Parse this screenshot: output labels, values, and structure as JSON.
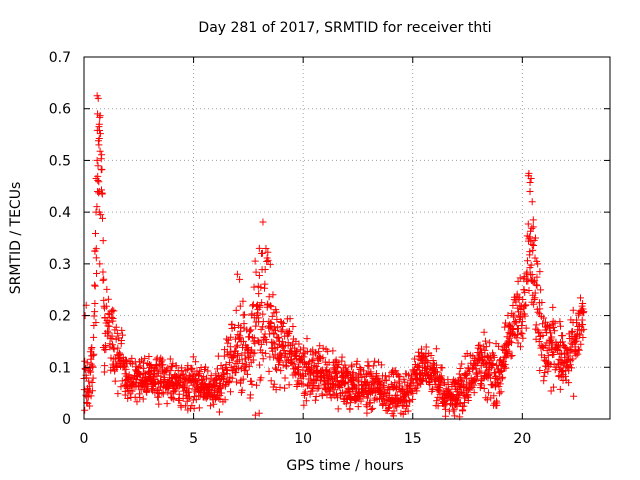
{
  "chart_data": {
    "type": "scatter",
    "title": "Day 281 of 2017, SRMTID for receiver thti",
    "xlabel": "GPS time / hours",
    "ylabel": "SRMTID / TECUs",
    "xlim": [
      0,
      24
    ],
    "ylim": [
      0,
      0.7
    ],
    "x_ticks": [
      0,
      5,
      10,
      15,
      20
    ],
    "x_tick_labels": [
      "0",
      "5",
      "10",
      "15",
      "20"
    ],
    "y_ticks": [
      0,
      0.1,
      0.2,
      0.3,
      0.4,
      0.5,
      0.6,
      0.7
    ],
    "y_tick_labels": [
      "0",
      "0.1",
      "0.2",
      "0.3",
      "0.4",
      "0.5",
      "0.6",
      "0.7"
    ],
    "grid": true,
    "marker": "+",
    "color": "#ff0000",
    "envelope": {
      "x": [
        0,
        0.2,
        0.4,
        0.6,
        0.75,
        0.9,
        1.2,
        1.6,
        2,
        3,
        4,
        5,
        6,
        6.5,
        7,
        7.5,
        8,
        8.3,
        8.8,
        9.3,
        10,
        11,
        12,
        13,
        14,
        14.7,
        15.3,
        16,
        16.5,
        17,
        17.5,
        18,
        18.5,
        19,
        19.5,
        20,
        20.3,
        20.6,
        21,
        21.5,
        22,
        22.5,
        22.8
      ],
      "y": [
        0.06,
        0.07,
        0.09,
        0.45,
        0.55,
        0.2,
        0.15,
        0.12,
        0.08,
        0.08,
        0.07,
        0.065,
        0.06,
        0.08,
        0.15,
        0.11,
        0.2,
        0.22,
        0.14,
        0.13,
        0.09,
        0.08,
        0.07,
        0.06,
        0.05,
        0.045,
        0.1,
        0.08,
        0.04,
        0.05,
        0.07,
        0.12,
        0.09,
        0.08,
        0.18,
        0.2,
        0.37,
        0.25,
        0.13,
        0.14,
        0.1,
        0.15,
        0.2
      ],
      "spread": [
        0.04,
        0.05,
        0.05,
        0.15,
        0.08,
        0.08,
        0.05,
        0.05,
        0.03,
        0.03,
        0.03,
        0.035,
        0.03,
        0.04,
        0.07,
        0.05,
        0.12,
        0.1,
        0.06,
        0.05,
        0.04,
        0.04,
        0.035,
        0.035,
        0.03,
        0.03,
        0.03,
        0.04,
        0.03,
        0.03,
        0.04,
        0.04,
        0.04,
        0.04,
        0.05,
        0.05,
        0.1,
        0.08,
        0.06,
        0.05,
        0.05,
        0.05,
        0.04
      ]
    },
    "highlights": [
      {
        "x": 0.6,
        "y": 0.625
      },
      {
        "x": 0.65,
        "y": 0.62
      },
      {
        "x": 0.62,
        "y": 0.59
      },
      {
        "x": 0.7,
        "y": 0.57
      },
      {
        "x": 0.68,
        "y": 0.53
      },
      {
        "x": 0.6,
        "y": 0.5
      },
      {
        "x": 0.55,
        "y": 0.465
      },
      {
        "x": 0.62,
        "y": 0.44
      },
      {
        "x": 0.7,
        "y": 0.44
      },
      {
        "x": 0.55,
        "y": 0.4
      },
      {
        "x": 0.7,
        "y": 0.4
      },
      {
        "x": 0.5,
        "y": 0.325
      },
      {
        "x": 0.72,
        "y": 0.3
      },
      {
        "x": 8.0,
        "y": 0.33
      },
      {
        "x": 8.1,
        "y": 0.32
      },
      {
        "x": 7.0,
        "y": 0.28
      },
      {
        "x": 7.1,
        "y": 0.27
      },
      {
        "x": 20.3,
        "y": 0.475
      },
      {
        "x": 20.4,
        "y": 0.465
      },
      {
        "x": 20.35,
        "y": 0.44
      },
      {
        "x": 20.45,
        "y": 0.42
      },
      {
        "x": 20.5,
        "y": 0.385
      },
      {
        "x": 20.6,
        "y": 0.35
      },
      {
        "x": 20.7,
        "y": 0.3
      },
      {
        "x": 20.8,
        "y": 0.285
      },
      {
        "x": 15.4,
        "y": 0.135
      },
      {
        "x": 0.1,
        "y": 0.22
      },
      {
        "x": 0.05,
        "y": 0.2
      }
    ]
  }
}
